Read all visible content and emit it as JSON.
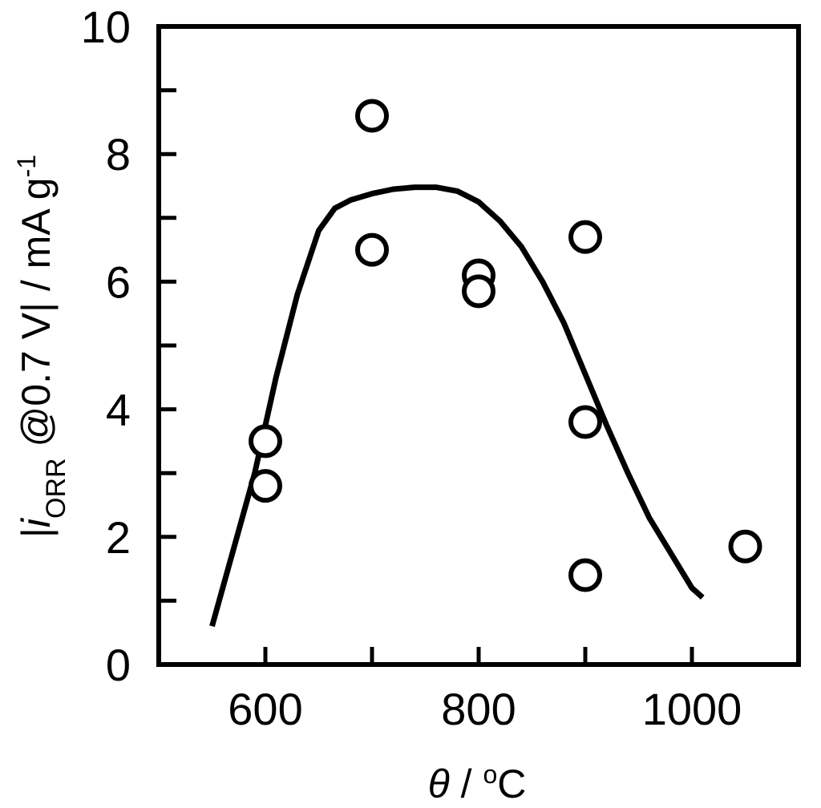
{
  "chart_data": {
    "type": "scatter",
    "xlabel": {
      "symbol": "θ",
      "separator": " / ",
      "unit_sup": "o",
      "unit": "C"
    },
    "ylabel": {
      "prefix": "|",
      "symbol": "i",
      "subscript": "ORR",
      "middle": " @0.7 V| / mA g",
      "superscript": "-1"
    },
    "xlim": [
      500,
      1100
    ],
    "ylim": [
      0,
      10
    ],
    "xticks": [
      600,
      800,
      1000
    ],
    "yticks": [
      0,
      2,
      4,
      6,
      8,
      10
    ],
    "x_minor_ticks": [
      700,
      900
    ],
    "y_minor_ticks": [
      1,
      3,
      5,
      7,
      9
    ],
    "grid": false,
    "points": [
      {
        "x": 600,
        "y": 3.5
      },
      {
        "x": 600,
        "y": 2.8
      },
      {
        "x": 700,
        "y": 8.6
      },
      {
        "x": 700,
        "y": 6.5
      },
      {
        "x": 800,
        "y": 6.1
      },
      {
        "x": 800,
        "y": 5.85
      },
      {
        "x": 900,
        "y": 6.7
      },
      {
        "x": 900,
        "y": 3.8
      },
      {
        "x": 900,
        "y": 1.4
      },
      {
        "x": 1050,
        "y": 1.85
      }
    ],
    "trend_line": {
      "x": [
        550,
        570,
        590,
        610,
        630,
        650,
        665,
        680,
        700,
        720,
        740,
        760,
        780,
        800,
        820,
        840,
        860,
        880,
        900,
        920,
        940,
        960,
        980,
        1000,
        1010
      ],
      "y": [
        0.6,
        1.8,
        3.0,
        4.5,
        5.8,
        6.8,
        7.15,
        7.28,
        7.38,
        7.45,
        7.48,
        7.48,
        7.42,
        7.25,
        6.95,
        6.55,
        6.0,
        5.35,
        4.55,
        3.75,
        3.0,
        2.3,
        1.75,
        1.2,
        1.05
      ]
    }
  }
}
